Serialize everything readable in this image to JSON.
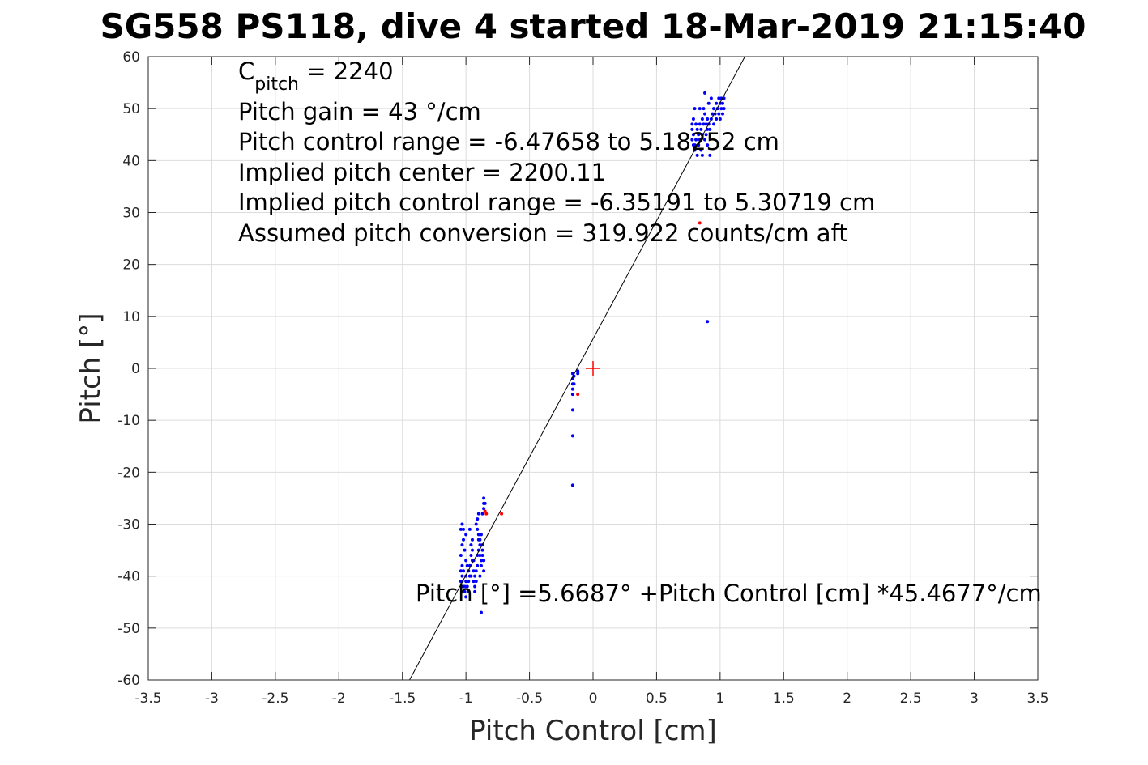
{
  "chart_data": {
    "type": "scatter",
    "title": "SG558 PS118, dive 4 started 18-Mar-2019 21:15:40",
    "xlabel": "Pitch Control [cm]",
    "ylabel": "Pitch [°]",
    "xlim": [
      -3.5,
      3.5
    ],
    "ylim": [
      -60,
      60
    ],
    "xticks": [
      -3.5,
      -3,
      -2.5,
      -2,
      -1.5,
      -1,
      -0.5,
      0,
      0.5,
      1,
      1.5,
      2,
      2.5,
      3,
      3.5
    ],
    "yticks": [
      -60,
      -50,
      -40,
      -30,
      -20,
      -10,
      0,
      10,
      20,
      30,
      40,
      50,
      60
    ],
    "grid": true,
    "annotations": {
      "cpitch_base": "C",
      "cpitch_sub": "pitch",
      "cpitch_value": " = 2240",
      "pitch_gain": "Pitch gain = 43 °/cm",
      "control_range": "Pitch control range = -6.47658 to 5.18252 cm",
      "implied_center": "Implied pitch center = 2200.11",
      "implied_range": "Implied pitch control range = -6.35191 to 5.30719 cm",
      "conversion": "Assumed pitch conversion = 319.922 counts/cm aft",
      "fit_equation": "Pitch [°] =5.6687° +Pitch Control [cm] *45.4677°/cm"
    },
    "fit_line": {
      "intercept": 5.6687,
      "slope": 45.4677,
      "color": "#000000"
    },
    "reference_marker": {
      "x": 0,
      "y": 0,
      "color": "#ff0000"
    },
    "series": [
      {
        "color": "#0000ff",
        "points": [
          [
            -1.04,
            -41
          ],
          [
            -1.03,
            -40
          ],
          [
            -1.02,
            -42
          ],
          [
            -1.01,
            -43
          ],
          [
            -1.0,
            -41
          ],
          [
            -1.04,
            -39
          ],
          [
            -1.03,
            -38
          ],
          [
            -1.02,
            -39
          ],
          [
            -1.0,
            -40
          ],
          [
            -0.99,
            -42
          ],
          [
            -1.04,
            -36
          ],
          [
            -1.03,
            -34
          ],
          [
            -1.02,
            -33
          ],
          [
            -1.04,
            -31
          ],
          [
            -1.03,
            -30
          ],
          [
            -1.02,
            -31
          ],
          [
            -1.0,
            -32
          ],
          [
            -1.01,
            -35
          ],
          [
            -1.0,
            -37
          ],
          [
            -0.99,
            -38
          ],
          [
            -0.98,
            -39
          ],
          [
            -0.98,
            -41
          ],
          [
            -0.97,
            -40
          ],
          [
            -0.97,
            -38
          ],
          [
            -0.96,
            -36
          ],
          [
            -0.96,
            -34
          ],
          [
            -0.95,
            -33
          ],
          [
            -0.95,
            -35
          ],
          [
            -0.94,
            -37
          ],
          [
            -0.94,
            -39
          ],
          [
            -0.93,
            -40
          ],
          [
            -0.93,
            -42
          ],
          [
            -0.92,
            -41
          ],
          [
            -0.92,
            -39
          ],
          [
            -0.91,
            -38
          ],
          [
            -0.91,
            -36
          ],
          [
            -0.9,
            -35
          ],
          [
            -0.9,
            -33
          ],
          [
            -0.89,
            -34
          ],
          [
            -0.89,
            -36
          ],
          [
            -0.88,
            -37
          ],
          [
            -0.88,
            -38
          ],
          [
            -0.87,
            -36
          ],
          [
            -0.87,
            -35
          ],
          [
            -0.86,
            -37
          ],
          [
            -0.86,
            -39
          ],
          [
            -0.91,
            -31
          ],
          [
            -0.9,
            -32
          ],
          [
            -0.92,
            -30
          ],
          [
            -0.91,
            -29
          ],
          [
            -0.9,
            -28
          ],
          [
            -0.86,
            -27
          ],
          [
            -0.86,
            -26
          ],
          [
            -0.86,
            -25
          ],
          [
            -0.85,
            -26
          ],
          [
            -0.87,
            -28
          ],
          [
            -0.88,
            -32
          ],
          [
            -0.89,
            -33
          ],
          [
            -0.87,
            -34
          ],
          [
            -0.95,
            -37
          ],
          [
            -0.96,
            -40
          ],
          [
            -0.98,
            -43
          ],
          [
            -1.0,
            -44
          ],
          [
            -1.01,
            -42
          ],
          [
            -1.03,
            -41
          ],
          [
            -0.94,
            -41
          ],
          [
            -0.93,
            -43
          ],
          [
            -0.89,
            -40
          ],
          [
            -0.88,
            -47
          ],
          [
            -0.97,
            -31
          ],
          [
            -0.16,
            -1
          ],
          [
            -0.16,
            -2
          ],
          [
            -0.16,
            -3
          ],
          [
            -0.16,
            -4
          ],
          [
            -0.16,
            -5
          ],
          [
            -0.16,
            -8
          ],
          [
            -0.16,
            -13
          ],
          [
            -0.16,
            -22.5
          ],
          [
            -0.15,
            -1.5
          ],
          [
            -0.15,
            -3
          ],
          [
            -0.12,
            -0.5
          ],
          [
            -0.12,
            -1
          ],
          [
            0.9,
            9
          ],
          [
            0.78,
            46
          ],
          [
            0.78,
            47
          ],
          [
            0.78,
            44
          ],
          [
            0.79,
            45
          ],
          [
            0.79,
            48
          ],
          [
            0.8,
            50
          ],
          [
            0.8,
            43
          ],
          [
            0.8,
            42
          ],
          [
            0.81,
            44
          ],
          [
            0.82,
            46
          ],
          [
            0.82,
            41
          ],
          [
            0.83,
            43
          ],
          [
            0.83,
            45
          ],
          [
            0.84,
            47
          ],
          [
            0.84,
            44
          ],
          [
            0.85,
            42
          ],
          [
            0.85,
            46
          ],
          [
            0.86,
            48
          ],
          [
            0.86,
            45
          ],
          [
            0.87,
            47
          ],
          [
            0.87,
            50
          ],
          [
            0.88,
            53
          ],
          [
            0.88,
            49
          ],
          [
            0.89,
            47
          ],
          [
            0.89,
            45
          ],
          [
            0.9,
            46
          ],
          [
            0.9,
            48
          ],
          [
            0.91,
            51
          ],
          [
            0.91,
            47
          ],
          [
            0.92,
            46
          ],
          [
            0.93,
            48
          ],
          [
            0.93,
            52
          ],
          [
            0.94,
            49
          ],
          [
            0.95,
            47
          ],
          [
            0.95,
            50
          ],
          [
            0.96,
            49
          ],
          [
            0.97,
            48
          ],
          [
            0.97,
            51
          ],
          [
            0.98,
            50
          ],
          [
            0.99,
            52
          ],
          [
            0.99,
            49
          ],
          [
            1.0,
            51
          ],
          [
            1.0,
            48
          ],
          [
            1.01,
            50
          ],
          [
            1.01,
            52
          ],
          [
            1.02,
            49
          ],
          [
            1.02,
            51
          ],
          [
            1.03,
            50
          ],
          [
            1.03,
            52
          ],
          [
            0.92,
            41
          ],
          [
            0.86,
            41
          ],
          [
            0.84,
            50
          ],
          [
            0.81,
            47
          ],
          [
            0.79,
            43
          ],
          [
            0.88,
            44
          ],
          [
            0.9,
            43
          ]
        ]
      },
      {
        "color": "#ff0000",
        "points": [
          [
            -0.72,
            -28
          ],
          [
            -0.84,
            -28
          ],
          [
            -0.85,
            -27.5
          ],
          [
            -0.12,
            -5
          ],
          [
            0.84,
            28
          ]
        ]
      }
    ]
  }
}
